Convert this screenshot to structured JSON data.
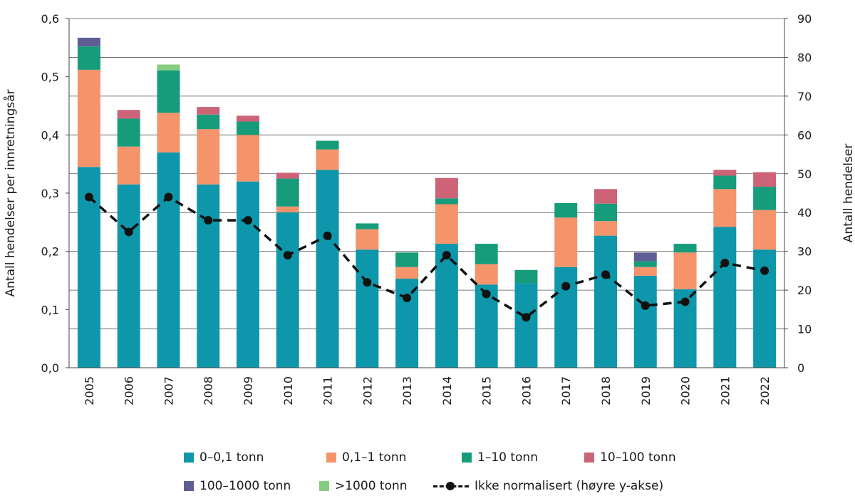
{
  "chart_data": {
    "type": "bar",
    "stacked": true,
    "categories": [
      "2005",
      "2006",
      "2007",
      "2008",
      "2009",
      "2010",
      "2011",
      "2012",
      "2013",
      "2014",
      "2015",
      "2016",
      "2017",
      "2018",
      "2019",
      "2020",
      "2021",
      "2022"
    ],
    "series": [
      {
        "name": "0–0,1 tonn",
        "color": "#0e97ab",
        "values": [
          0.345,
          0.315,
          0.37,
          0.315,
          0.32,
          0.267,
          0.34,
          0.203,
          0.153,
          0.213,
          0.143,
          0.145,
          0.173,
          0.227,
          0.158,
          0.135,
          0.242,
          0.203
        ]
      },
      {
        "name": "0,1–1 tonn",
        "color": "#f5936b",
        "values": [
          0.167,
          0.065,
          0.068,
          0.095,
          0.08,
          0.01,
          0.035,
          0.035,
          0.02,
          0.068,
          0.035,
          0.0,
          0.085,
          0.025,
          0.015,
          0.063,
          0.065,
          0.068
        ]
      },
      {
        "name": "1–10 tonn",
        "color": "#169c7b",
        "values": [
          0.04,
          0.048,
          0.073,
          0.025,
          0.023,
          0.048,
          0.015,
          0.01,
          0.025,
          0.01,
          0.035,
          0.023,
          0.025,
          0.03,
          0.01,
          0.015,
          0.023,
          0.04
        ]
      },
      {
        "name": "10–100 tonn",
        "color": "#cc6377",
        "values": [
          0.0,
          0.015,
          0.0,
          0.013,
          0.01,
          0.01,
          0.0,
          0.0,
          0.0,
          0.035,
          0.0,
          0.0,
          0.0,
          0.025,
          0.0,
          0.0,
          0.01,
          0.025
        ]
      },
      {
        "name": "100–1000 tonn",
        "color": "#5e5e95",
        "values": [
          0.015,
          0.0,
          0.0,
          0.0,
          0.0,
          0.0,
          0.0,
          0.0,
          0.0,
          0.0,
          0.0,
          0.0,
          0.0,
          0.0,
          0.015,
          0.0,
          0.0,
          0.0
        ]
      },
      {
        "name": ">1000 tonn",
        "color": "#86cc7f",
        "values": [
          0.0,
          0.0,
          0.01,
          0.0,
          0.0,
          0.0,
          0.0,
          0.0,
          0.0,
          0.0,
          0.0,
          0.0,
          0.0,
          0.0,
          0.0,
          0.0,
          0.0,
          0.0
        ]
      }
    ],
    "line": {
      "name": "Ikke normalisert (høyre y-akse)",
      "color": "#111111",
      "values": [
        44,
        35,
        44,
        38,
        38,
        29,
        34,
        22,
        18,
        29,
        19,
        13,
        21,
        24,
        16,
        17,
        27,
        25
      ]
    },
    "ylabel": "Antall hendelser per innretningsår",
    "y2label": "Antall hendelser",
    "ylim": [
      0,
      0.6
    ],
    "y2lim": [
      0,
      90
    ],
    "yticks": [
      "0,0",
      "0,1",
      "0,2",
      "0,3",
      "0,4",
      "0,5",
      "0,6"
    ],
    "y2ticks": [
      "0",
      "10",
      "20",
      "30",
      "40",
      "50",
      "60",
      "70",
      "80",
      "90"
    ],
    "grid": true,
    "legend": "bottom"
  }
}
